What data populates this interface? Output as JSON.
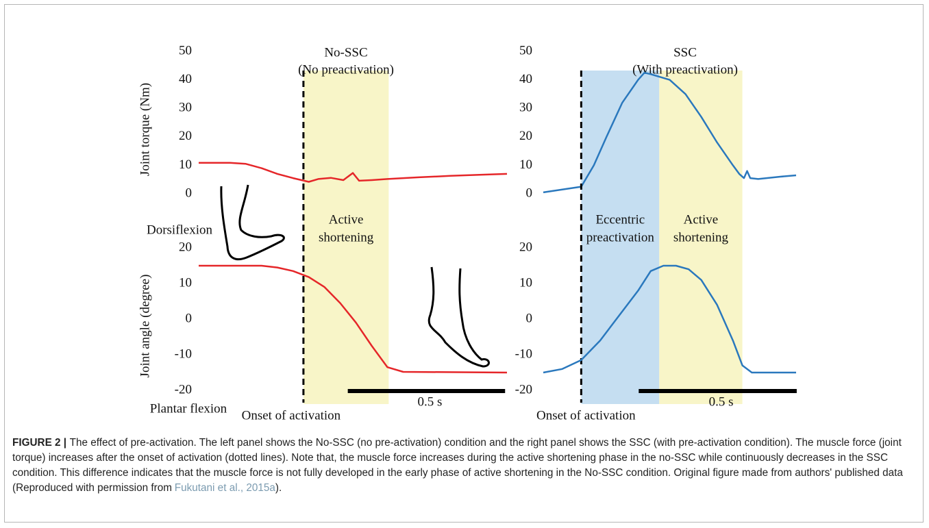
{
  "chart_data": [
    {
      "type": "line",
      "title": "No-SSC",
      "subtitle": "(No preactivation)",
      "ylabel": "Joint torque (Nm)",
      "color": "#e52629",
      "x": [
        0,
        0.1,
        0.15,
        0.2,
        0.25,
        0.3,
        0.35,
        0.38,
        0.42,
        0.46,
        0.49,
        0.51,
        0.55,
        0.6,
        0.7,
        0.8,
        0.9,
        0.98
      ],
      "values": [
        10.9,
        10.9,
        10.5,
        9,
        7,
        5.5,
        4.2,
        5.2,
        5.6,
        4.8,
        7.3,
        4.6,
        4.8,
        5.2,
        5.8,
        6.3,
        6.7,
        7.0
      ],
      "xlim": [
        0,
        0.98
      ],
      "ylim": [
        0,
        50
      ],
      "yticks": [
        0,
        10,
        20,
        30,
        40,
        50
      ]
    },
    {
      "type": "line",
      "ylabel": "Joint angle (degree)",
      "color": "#e52629",
      "x": [
        0,
        0.2,
        0.25,
        0.3,
        0.35,
        0.4,
        0.45,
        0.5,
        0.55,
        0.6,
        0.65,
        0.98
      ],
      "values": [
        15,
        15,
        14.5,
        13.5,
        11.8,
        9,
        4.5,
        -1,
        -7.5,
        -13.5,
        -14.8,
        -15
      ],
      "xlim": [
        0,
        0.98
      ],
      "ylim": [
        -20,
        20
      ],
      "yticks": [
        -20,
        -10,
        0,
        10,
        20
      ],
      "annotations": [
        "Dorsiflexion",
        "Plantar flexion"
      ],
      "onset": {
        "x": 0.333,
        "label": "Onset of activation"
      },
      "regions": [
        {
          "x": [
            0.333,
            0.604
          ],
          "color": "#f8f5c8",
          "label": [
            "Active",
            "shortening"
          ]
        }
      ],
      "scale_bar": {
        "x": [
          0.474,
          0.974
        ],
        "label": "0.5 s"
      }
    },
    {
      "type": "line",
      "title": "SSC",
      "subtitle": "(With preactivation)",
      "color": "#2a78bd",
      "x": [
        0,
        0.12,
        0.16,
        0.2,
        0.25,
        0.3,
        0.32,
        0.34,
        0.4,
        0.45,
        0.5,
        0.55,
        0.6,
        0.62,
        0.635,
        0.645,
        0.655,
        0.68,
        0.75,
        0.8
      ],
      "values": [
        0.5,
        2.5,
        10,
        20,
        32,
        40,
        42.5,
        42,
        40,
        35,
        27,
        18,
        10,
        7,
        5.5,
        8,
        5.5,
        5.2,
        6,
        6.5
      ],
      "xlim": [
        0,
        0.8
      ],
      "ylim": [
        0,
        50
      ],
      "yticks": [
        0,
        10,
        20,
        30,
        40,
        50
      ]
    },
    {
      "type": "line",
      "color": "#2a78bd",
      "x": [
        0,
        0.06,
        0.12,
        0.18,
        0.24,
        0.3,
        0.34,
        0.38,
        0.42,
        0.46,
        0.5,
        0.55,
        0.6,
        0.63,
        0.66,
        0.8
      ],
      "values": [
        -15,
        -14,
        -11.5,
        -6,
        1,
        8,
        13.5,
        15,
        15,
        14,
        11,
        4,
        -6,
        -13,
        -15,
        -15
      ],
      "xlim": [
        0,
        0.8
      ],
      "ylim": [
        -20,
        20
      ],
      "yticks": [
        -20,
        -10,
        0,
        10,
        20
      ],
      "onset": {
        "x": 0.12,
        "label": "Onset of activation"
      },
      "regions": [
        {
          "x": [
            0.12,
            0.367
          ],
          "color": "#c5def1",
          "label": [
            "Eccentric",
            "preactivation"
          ]
        },
        {
          "x": [
            0.367,
            0.63
          ],
          "color": "#f8f5c8",
          "label": [
            "Active",
            "shortening"
          ]
        }
      ],
      "scale_bar": {
        "x": [
          0.302,
          0.802
        ],
        "label": "0.5 s"
      }
    }
  ],
  "caption": {
    "label": "FIGURE 2 |",
    "text": "The effect of pre-activation. The left panel shows the No-SSC (no pre-activation) condition and the right panel shows the SSC (with pre-activation condition). The muscle force (joint torque) increases after the onset of activation (dotted lines). Note that, the muscle force increases during the active shortening phase in the no-SSC while continuously decreases in the SSC condition. This difference indicates that the muscle force is not fully developed in the early phase of active shortening in the No-SSC condition. Original figure made from authors' published data (Reproduced with permission from",
    "link": "Fukutani et al., 2015a",
    "end": ")."
  }
}
